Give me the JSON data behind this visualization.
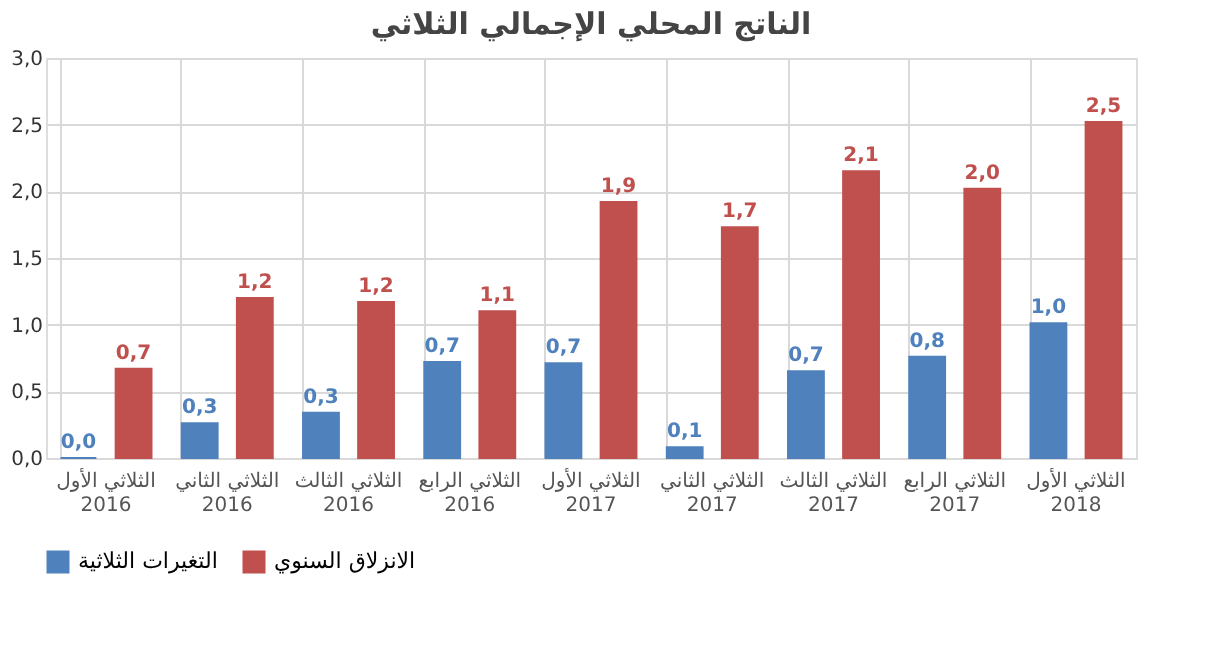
{
  "chart_data": {
    "type": "bar",
    "title": "الناتج المحلي الإجمالي الثلاثي",
    "categories": [
      "الثلاثي الأول\n2016",
      "الثلاثي الثاني\n2016",
      "الثلاثي الثالث\n2016",
      "الثلاثي الرابع\n2016",
      "الثلاثي الأول\n2017",
      "الثلاثي الثاني\n2017",
      "الثلاثي الثالث\n2017",
      "الثلاثي الرابع\n2017",
      "الثلاثي الأول\n2018"
    ],
    "series": [
      {
        "name": "التغيرات الثلاثية",
        "color": "#4f81bd",
        "values": [
          0.0,
          0.26,
          0.34,
          0.72,
          0.71,
          0.08,
          0.65,
          0.76,
          1.01
        ],
        "value_labels": [
          "0,0",
          "0,3",
          "0,3",
          "0,7",
          "0,7",
          "0,1",
          "0,7",
          "0,8",
          "1,0"
        ]
      },
      {
        "name": "الانزلاق السنوي",
        "color": "#c0504d",
        "values": [
          0.67,
          1.2,
          1.17,
          1.1,
          1.92,
          1.73,
          2.15,
          2.02,
          2.52
        ],
        "value_labels": [
          "0,7",
          "1,2",
          "1,2",
          "1,1",
          "1,9",
          "1,7",
          "2,1",
          "2,0",
          "2,5"
        ]
      }
    ],
    "ylim": [
      0,
      3
    ],
    "yticks": [
      {
        "value": 0,
        "label": "0,0"
      },
      {
        "value": 0.5,
        "label": "0,5"
      },
      {
        "value": 1,
        "label": "1,0"
      },
      {
        "value": 1.5,
        "label": "1,5"
      },
      {
        "value": 2,
        "label": "2,0"
      },
      {
        "value": 2.5,
        "label": "2,5"
      },
      {
        "value": 3,
        "label": "3,0"
      }
    ],
    "grid": true,
    "legend": "bottom"
  }
}
